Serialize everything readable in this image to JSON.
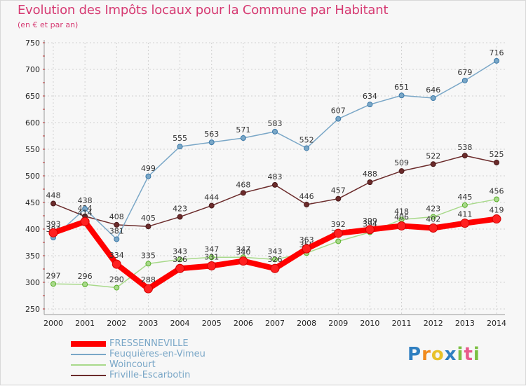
{
  "chart_data": {
    "type": "line",
    "title": "Evolution des Impôts locaux pour la Commune par Habitant",
    "subtitle": "(en € et par an)",
    "xlabel": "",
    "ylabel": "",
    "categories": [
      "2000",
      "2001",
      "2002",
      "2003",
      "2004",
      "2005",
      "2006",
      "2007",
      "2008",
      "2009",
      "2010",
      "2011",
      "2012",
      "2013",
      "2014"
    ],
    "ylim": [
      250,
      750
    ],
    "yticks": [
      250,
      300,
      350,
      400,
      450,
      500,
      550,
      600,
      650,
      700,
      750
    ],
    "series": [
      {
        "name": "Friville-Escarbotin",
        "color": "#6b2b2b",
        "values": [
          448,
          424,
          408,
          405,
          423,
          444,
          468,
          483,
          446,
          457,
          488,
          509,
          522,
          538,
          525
        ]
      },
      {
        "name": "Woincourt",
        "color": "#a8d98a",
        "values": [
          297,
          296,
          290,
          335,
          343,
          347,
          347,
          343,
          355,
          377,
          394,
          418,
          423,
          445,
          456
        ]
      },
      {
        "name": "Feuquières-en-Vimeu",
        "color": "#7aa7c7",
        "values": [
          384,
          438,
          381,
          499,
          555,
          563,
          571,
          583,
          552,
          607,
          634,
          651,
          646,
          679,
          716
        ]
      },
      {
        "name": "FRESSENNEVILLE",
        "color": "#ff0000",
        "values": [
          393,
          414,
          334,
          288,
          326,
          331,
          340,
          326,
          363,
          392,
          399,
          406,
          402,
          411,
          419
        ]
      }
    ],
    "legend_order": [
      "FRESSENNEVILLE",
      "Feuquières-en-Vimeu",
      "Woincourt",
      "Friville-Escarbotin"
    ],
    "legend_position": "bottom-left"
  },
  "logo": {
    "letters": [
      "P",
      "r",
      "o",
      "x",
      "i",
      "t",
      "i"
    ],
    "colors": [
      "#2f7fc0",
      "#f08a1c",
      "#e8c22a",
      "#2f7fc0",
      "#7cc043",
      "#e85a8c",
      "#7cc043"
    ]
  }
}
